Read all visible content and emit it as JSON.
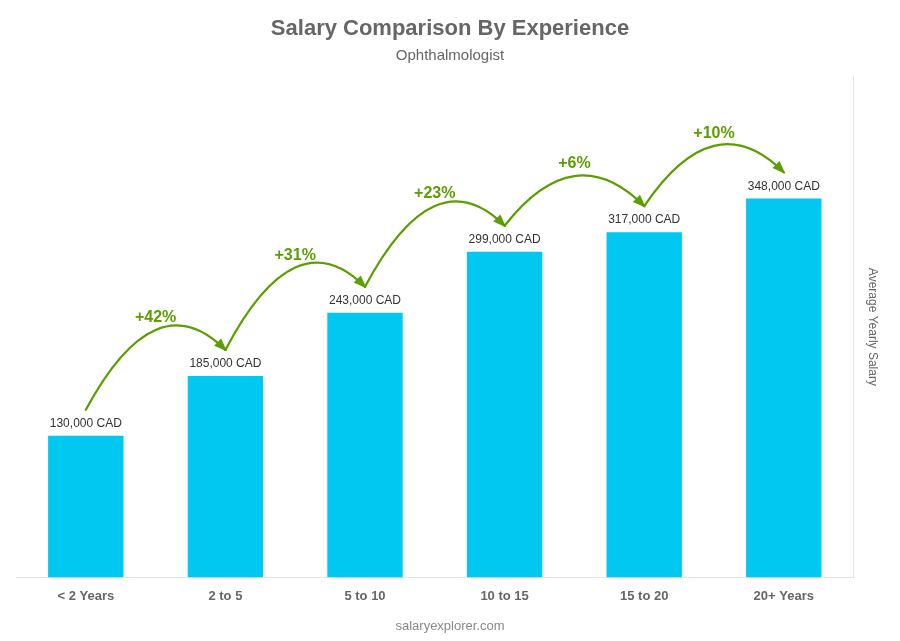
{
  "chart_data": {
    "type": "bar",
    "title": "Salary Comparison By Experience",
    "subtitle": "Ophthalmologist",
    "categories": [
      "< 2 Years",
      "2 to 5",
      "5 to 10",
      "10 to 15",
      "15 to 20",
      "20+ Years"
    ],
    "values": [
      130000,
      185000,
      243000,
      299000,
      317000,
      348000
    ],
    "value_labels": [
      "130,000 CAD",
      "185,000 CAD",
      "243,000 CAD",
      "299,000 CAD",
      "317,000 CAD",
      "348,000 CAD"
    ],
    "data_labels": true,
    "annotations": [
      "+42%",
      "+31%",
      "+23%",
      "+6%",
      "+10%"
    ],
    "color": "#00c8f0",
    "ylabel": "Average Yearly Salary",
    "ylim": [
      0,
      460000
    ],
    "grid": false,
    "tick_labels": "x",
    "watermark": "salaryexplorer.com"
  }
}
